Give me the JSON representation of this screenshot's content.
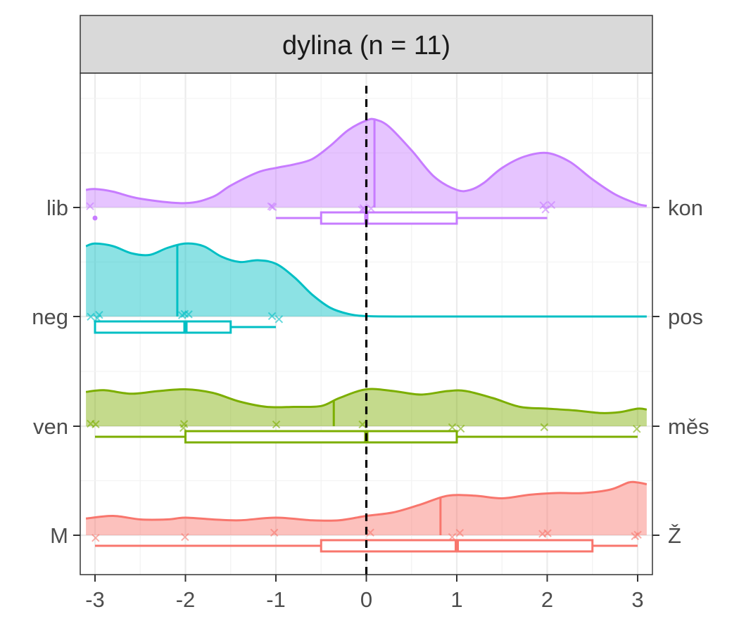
{
  "strip": {
    "title": "dylina (n = 11)"
  },
  "colors": {
    "kon": "#C77CFF",
    "pos": "#00BFC4",
    "mes": "#7CAE00",
    "z": "#F8766D",
    "strip_bg": "#D9D9D9",
    "grid": "#EBEBEB",
    "reference_line": "#000000"
  },
  "chart_data": {
    "type": "raincloud",
    "title": "dylina (n = 11)",
    "xlabel": "",
    "ylabel": "",
    "xlim": [
      -3.1,
      3.1
    ],
    "x_ticks": [
      -3,
      -2,
      -1,
      0,
      1,
      2,
      3
    ],
    "x_tick_labels": [
      "-3",
      "-2",
      "-1",
      "0",
      "1",
      "2",
      "3"
    ],
    "reference_x": 0,
    "grid": true,
    "legend": "none",
    "series": [
      {
        "left_label": "lib",
        "right_label": "kon",
        "color_key": "kon",
        "points": [
          -3,
          -1,
          -1,
          0,
          0,
          0,
          0,
          2,
          2,
          2
        ],
        "mean": 0.09,
        "box": {
          "min": -1,
          "q1": -0.5,
          "median": 0,
          "q3": 1,
          "max": 2
        },
        "outliers": [
          -3
        ],
        "density": [
          [
            -3.1,
            0.2
          ],
          [
            -3.0,
            0.21
          ],
          [
            -2.8,
            0.18
          ],
          [
            -2.5,
            0.1
          ],
          [
            -2.0,
            0.05
          ],
          [
            -1.7,
            0.12
          ],
          [
            -1.5,
            0.25
          ],
          [
            -1.2,
            0.4
          ],
          [
            -1.0,
            0.45
          ],
          [
            -0.8,
            0.49
          ],
          [
            -0.6,
            0.55
          ],
          [
            -0.4,
            0.7
          ],
          [
            -0.2,
            0.88
          ],
          [
            0.0,
            0.99
          ],
          [
            0.1,
            1.0
          ],
          [
            0.25,
            0.92
          ],
          [
            0.5,
            0.65
          ],
          [
            0.75,
            0.35
          ],
          [
            1.0,
            0.2
          ],
          [
            1.15,
            0.2
          ],
          [
            1.3,
            0.28
          ],
          [
            1.5,
            0.45
          ],
          [
            1.75,
            0.58
          ],
          [
            2.0,
            0.62
          ],
          [
            2.25,
            0.52
          ],
          [
            2.5,
            0.32
          ],
          [
            2.75,
            0.15
          ],
          [
            3.0,
            0.04
          ],
          [
            3.1,
            0.02
          ]
        ]
      },
      {
        "left_label": "neg",
        "right_label": "pos",
        "color_key": "pos",
        "points": [
          -3,
          -3,
          -3,
          -2,
          -2,
          -2,
          -1,
          -1
        ],
        "mean": -2.09,
        "box": {
          "min": -3,
          "q1": -3,
          "median": -2,
          "q3": -1.5,
          "max": -1
        },
        "outliers": [],
        "density": [
          [
            -3.1,
            0.8
          ],
          [
            -3.0,
            0.83
          ],
          [
            -2.8,
            0.8
          ],
          [
            -2.6,
            0.72
          ],
          [
            -2.4,
            0.7
          ],
          [
            -2.2,
            0.78
          ],
          [
            -2.0,
            0.83
          ],
          [
            -1.8,
            0.8
          ],
          [
            -1.6,
            0.68
          ],
          [
            -1.4,
            0.62
          ],
          [
            -1.2,
            0.64
          ],
          [
            -1.0,
            0.6
          ],
          [
            -0.8,
            0.45
          ],
          [
            -0.6,
            0.25
          ],
          [
            -0.4,
            0.1
          ],
          [
            -0.2,
            0.03
          ],
          [
            0.0,
            0.005
          ],
          [
            0.5,
            0.0
          ],
          [
            3.1,
            0.0
          ]
        ]
      },
      {
        "left_label": "ven",
        "right_label": "měs",
        "color_key": "mes",
        "points": [
          -3,
          -3,
          -2,
          -2,
          -1,
          0,
          1,
          1,
          2,
          3
        ],
        "mean": -0.36,
        "box": {
          "min": -3,
          "q1": -2,
          "median": 0,
          "q3": 1,
          "max": 3
        },
        "outliers": [],
        "density": [
          [
            -3.1,
            0.39
          ],
          [
            -2.9,
            0.41
          ],
          [
            -2.6,
            0.37
          ],
          [
            -2.3,
            0.4
          ],
          [
            -2.0,
            0.42
          ],
          [
            -1.7,
            0.38
          ],
          [
            -1.4,
            0.28
          ],
          [
            -1.1,
            0.22
          ],
          [
            -0.8,
            0.22
          ],
          [
            -0.5,
            0.23
          ],
          [
            -0.3,
            0.32
          ],
          [
            0.0,
            0.42
          ],
          [
            0.3,
            0.4
          ],
          [
            0.6,
            0.36
          ],
          [
            0.9,
            0.4
          ],
          [
            1.1,
            0.4
          ],
          [
            1.4,
            0.32
          ],
          [
            1.7,
            0.22
          ],
          [
            2.0,
            0.2
          ],
          [
            2.3,
            0.18
          ],
          [
            2.6,
            0.15
          ],
          [
            2.8,
            0.16
          ],
          [
            3.0,
            0.2
          ],
          [
            3.1,
            0.19
          ]
        ]
      },
      {
        "left_label": "M",
        "right_label": "Ž",
        "color_key": "z",
        "points": [
          -3,
          -2,
          -1,
          0,
          1,
          1,
          2,
          2,
          3,
          3
        ],
        "mean": 0.82,
        "box": {
          "min": -3,
          "q1": -0.5,
          "median": 1,
          "q3": 2.5,
          "max": 3
        },
        "outliers": [],
        "density": [
          [
            -3.1,
            0.19
          ],
          [
            -2.8,
            0.22
          ],
          [
            -2.5,
            0.18
          ],
          [
            -2.2,
            0.18
          ],
          [
            -2.0,
            0.2
          ],
          [
            -1.7,
            0.18
          ],
          [
            -1.4,
            0.17
          ],
          [
            -1.0,
            0.2
          ],
          [
            -0.6,
            0.17
          ],
          [
            -0.3,
            0.17
          ],
          [
            0.0,
            0.22
          ],
          [
            0.3,
            0.26
          ],
          [
            0.6,
            0.35
          ],
          [
            0.9,
            0.45
          ],
          [
            1.2,
            0.45
          ],
          [
            1.5,
            0.42
          ],
          [
            1.8,
            0.46
          ],
          [
            2.1,
            0.48
          ],
          [
            2.4,
            0.48
          ],
          [
            2.7,
            0.52
          ],
          [
            2.9,
            0.6
          ],
          [
            3.0,
            0.6
          ],
          [
            3.1,
            0.58
          ]
        ]
      }
    ]
  }
}
